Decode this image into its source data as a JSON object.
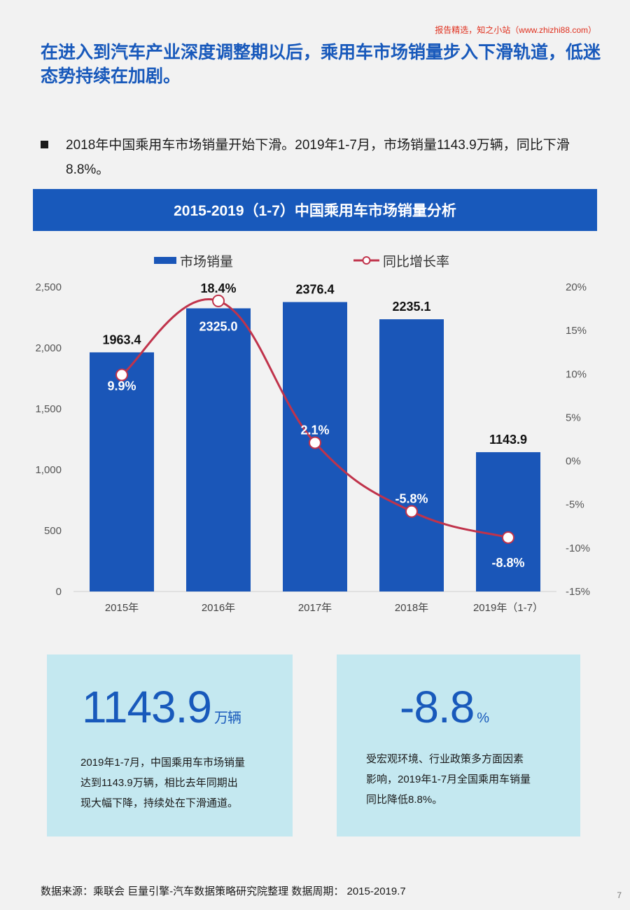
{
  "watermark": "报告精选，知之小站（www.zhizhi88.com）",
  "headline": "在进入到汽车产业深度调整期以后，乘用车市场销量步入下滑轨道，低迷态势持续在加剧。",
  "bullet": "2018年中国乘用车市场销量开始下滑。2019年1-7月，市场销量1143.9万辆，同比下滑8.8%。",
  "chart_title": "2015-2019（1-7）中国乘用车市场销量分析",
  "chart_data": {
    "type": "bar",
    "title": "2015-2019（1-7）中国乘用车市场销量分析",
    "categories": [
      "2015年",
      "2016年",
      "2017年",
      "2018年",
      "2019年（1-7）"
    ],
    "series": [
      {
        "name": "市场销量",
        "type": "bar",
        "axis": "left",
        "values": [
          1963.4,
          2325.0,
          2376.4,
          2235.1,
          1143.9
        ],
        "labels": [
          "1963.4",
          "2325.0",
          "2376.4",
          "2235.1",
          "1143.9"
        ],
        "color": "#1a56b8"
      },
      {
        "name": "同比增长率",
        "type": "line",
        "axis": "right",
        "values": [
          9.9,
          18.4,
          2.1,
          -5.8,
          -8.8
        ],
        "labels": [
          "9.9%",
          "18.4%",
          "2.1%",
          "-5.8%",
          "-8.8%"
        ],
        "color": "#c0334b"
      }
    ],
    "y_left": {
      "ylim": [
        0,
        2500
      ],
      "ticks": [
        "0",
        "500",
        "1,000",
        "1,500",
        "2,000",
        "2,500"
      ]
    },
    "y_right": {
      "ylim": [
        -15,
        20
      ],
      "ticks": [
        "-15%",
        "-10%",
        "-5%",
        "0%",
        "5%",
        "10%",
        "15%",
        "20%"
      ]
    },
    "legend": "top-center",
    "grid": false
  },
  "card_left": {
    "value": "1143.9",
    "unit": "万辆",
    "text": [
      "2019年1-7月，中国乘用车市场销量",
      "达到1143.9万辆，相比去年同期出",
      "现大幅下降，持续处在下滑通道。"
    ]
  },
  "card_right": {
    "value": "-8.8",
    "unit": "%",
    "text": [
      "受宏观环境、行业政策多方面因素",
      "影响，2019年1-7月全国乘用车销量",
      "同比降低8.8%。"
    ]
  },
  "source": "数据来源：乘联会 巨量引擎-汽车数据策略研究院整理 数据周期： 2015-2019.7",
  "page_number": "7"
}
